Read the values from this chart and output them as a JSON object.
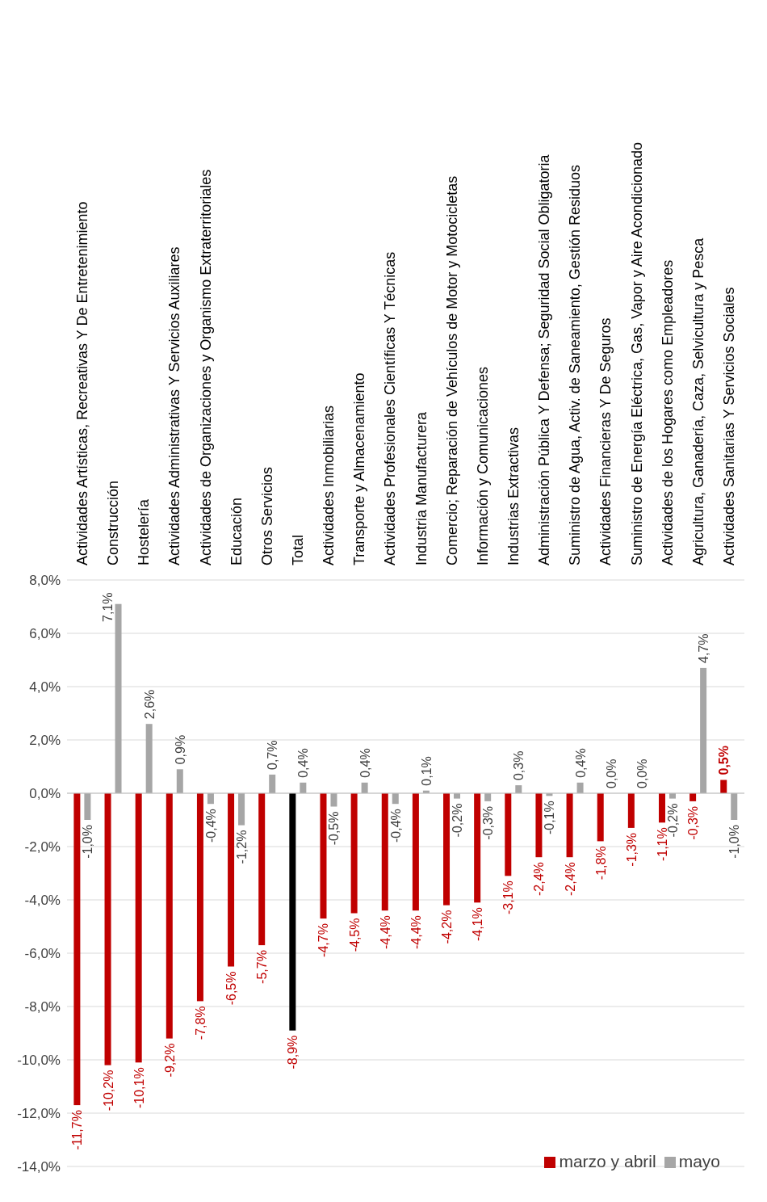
{
  "chart_data": {
    "type": "bar",
    "categories": [
      "Actividades Artísticas, Recreativas Y De Entretenimiento",
      "Construcción",
      "Hostelería",
      "Actividades Administrativas Y Servicios Auxiliares",
      "Actividades de Organizaciones y Organismo Extraterritoriales",
      "Educación",
      "Otros Servicios",
      "Total",
      "Actividades Inmobiliarias",
      "Transporte y Almacenamiento",
      "Actividades Profesionales Científicas Y Técnicas",
      "Industria Manufacturera",
      "Comercio; Reparación de Vehículos de Motor y Motocicletas",
      "Información y Comunicaciones",
      "Industrias Extractivas",
      "Administración Pública Y Defensa; Seguridad Social Obligatoria",
      "Suministro de Agua, Activ. de Saneamiento, Gestión Residuos",
      "Actividades Financieras Y De Seguros",
      "Suministro de Energía Eléctrica, Gas, Vapor y Aire Acondicionado",
      "Actividades de los Hogares como Empleadores",
      "Agricultura, Ganadería, Caza, Selvicultura y  Pesca",
      "Actividades Sanitarias Y Servicios Sociales"
    ],
    "series": [
      {
        "name": "marzo y abril",
        "color": "#c00000",
        "colors": [
          "#c00000",
          "#c00000",
          "#c00000",
          "#c00000",
          "#c00000",
          "#c00000",
          "#c00000",
          "#000000",
          "#c00000",
          "#c00000",
          "#c00000",
          "#c00000",
          "#c00000",
          "#c00000",
          "#c00000",
          "#c00000",
          "#c00000",
          "#c00000",
          "#c00000",
          "#c00000",
          "#c00000",
          "#c00000"
        ],
        "values": [
          -11.7,
          -10.2,
          -10.1,
          -9.2,
          -7.8,
          -6.5,
          -5.7,
          -8.9,
          -4.7,
          -4.5,
          -4.4,
          -4.4,
          -4.2,
          -4.1,
          -3.1,
          -2.4,
          -2.4,
          -1.8,
          -1.3,
          -1.1,
          -0.3,
          0.5
        ],
        "value_labels": [
          "-11,7%",
          "-10,2%",
          "-10,1%",
          "-9,2%",
          "-7,8%",
          "-6,5%",
          "-5,7%",
          "-8,9%",
          "-4,7%",
          "-4,5%",
          "-4,4%",
          "-4,4%",
          "-4,2%",
          "-4,1%",
          "-3,1%",
          "-2,4%",
          "-2,4%",
          "-1,8%",
          "-1,3%",
          "-1,1%",
          "-0,3%",
          "0,5%"
        ]
      },
      {
        "name": "mayo",
        "color": "#a6a6a6",
        "values": [
          -1.0,
          7.1,
          2.6,
          0.9,
          -0.4,
          -1.2,
          0.7,
          0.4,
          -0.5,
          0.4,
          -0.4,
          0.1,
          -0.2,
          -0.3,
          0.3,
          -0.1,
          0.4,
          0.0,
          0.0,
          -0.2,
          4.7,
          -1.0
        ],
        "value_labels": [
          "-1,0%",
          "7,1%",
          "2,6%",
          "0,9%",
          "-0,4%",
          "-1,2%",
          "0,7%",
          "0,4%",
          "-0,5%",
          "0,4%",
          "-0,4%",
          "0,1%",
          "-0,2%",
          "-0,3%",
          "0,3%",
          "-0,1%",
          "0,4%",
          "0,0%",
          "0,0%",
          "-0,2%",
          "4,7%",
          "-1,0%"
        ]
      }
    ],
    "ylim": [
      -14,
      8
    ],
    "yticks": [
      {
        "value": -14,
        "label": "-14,0%"
      },
      {
        "value": -12,
        "label": "-12,0%"
      },
      {
        "value": -10,
        "label": "-10,0%"
      },
      {
        "value": -8,
        "label": "-8,0%"
      },
      {
        "value": -6,
        "label": "-6,0%"
      },
      {
        "value": -4,
        "label": "-4,0%"
      },
      {
        "value": -2,
        "label": "-2,0%"
      },
      {
        "value": 0,
        "label": "0,0%"
      },
      {
        "value": 2,
        "label": "2,0%"
      },
      {
        "value": 4,
        "label": "4,0%"
      },
      {
        "value": 6,
        "label": "6,0%"
      },
      {
        "value": 8,
        "label": "8,0%"
      }
    ],
    "grid": "y",
    "legend": "bottom right"
  }
}
